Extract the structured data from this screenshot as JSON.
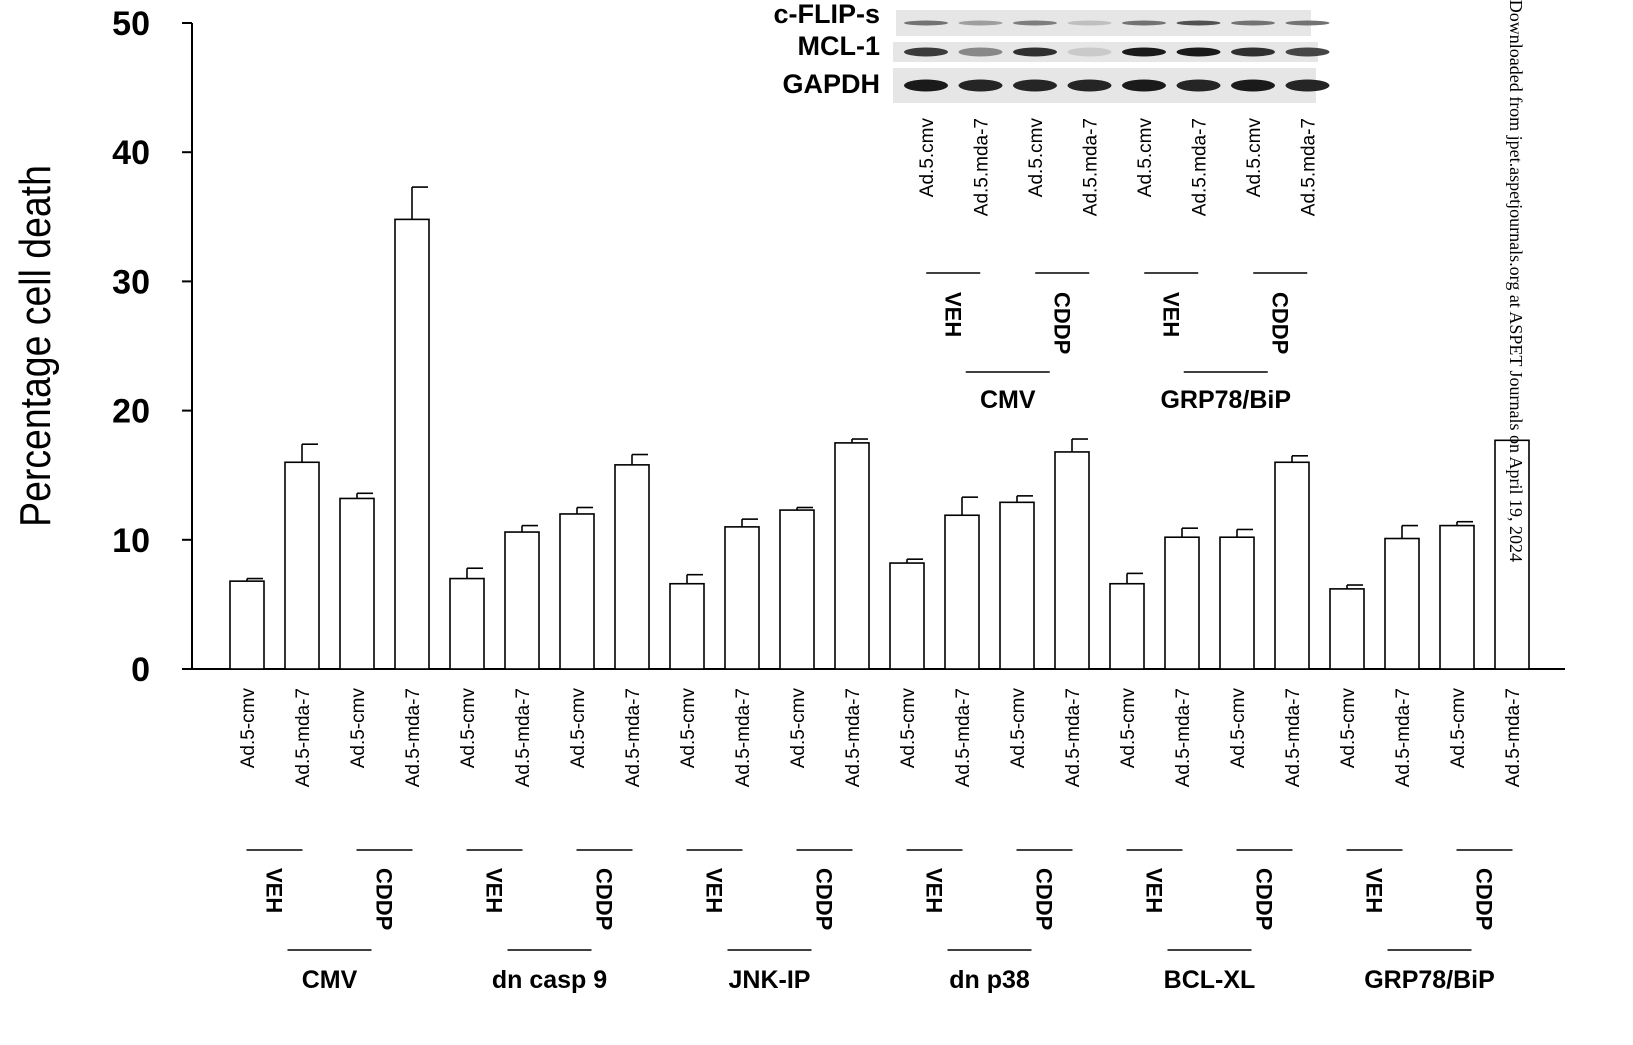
{
  "chart_data": {
    "type": "bar",
    "ylabel": "Percentage cell death",
    "ylim": [
      0,
      50
    ],
    "yticks": [
      0,
      10,
      20,
      30,
      40,
      50
    ],
    "grid": false,
    "groups": [
      "CMV",
      "dn casp 9",
      "JNK-IP",
      "dn p38",
      "BCL-XL",
      "GRP78/BiP"
    ],
    "subgroups": [
      "VEH",
      "CDDP"
    ],
    "categories": [
      "Ad.5-cmv",
      "Ad.5-mda-7",
      "Ad.5-cmv",
      "Ad.5-mda-7",
      "Ad.5-cmv",
      "Ad.5-mda-7",
      "Ad.5-cmv",
      "Ad.5-mda-7",
      "Ad.5-cmv",
      "Ad.5-mda-7",
      "Ad.5-cmv",
      "Ad.5-mda-7",
      "Ad.5-cmv",
      "Ad.5-mda-7",
      "Ad.5-cmv",
      "Ad.5-mda-7",
      "Ad.5-cmv",
      "Ad.5-mda-7",
      "Ad.5-cmv",
      "Ad.5-mda-7",
      "Ad.5-cmv",
      "Ad.5-mda-7",
      "Ad.5-cmv",
      "Ad.5-mda-7"
    ],
    "values": [
      6.8,
      16.0,
      13.2,
      34.8,
      7.0,
      10.6,
      12.0,
      15.8,
      6.6,
      11.0,
      12.3,
      17.5,
      8.2,
      11.9,
      12.9,
      16.8,
      6.6,
      10.2,
      10.2,
      16.0,
      6.2,
      10.1,
      11.1,
      17.7
    ],
    "errors": [
      0.2,
      1.4,
      0.4,
      2.5,
      0.8,
      0.5,
      0.5,
      0.8,
      0.7,
      0.6,
      0.2,
      0.3,
      0.3,
      1.4,
      0.5,
      1.0,
      0.8,
      0.7,
      0.6,
      0.5,
      0.3,
      1.0,
      0.3,
      0.0
    ]
  },
  "inset": {
    "blot_labels": [
      "c-FLIP-s",
      "MCL-1",
      "GAPDH"
    ],
    "lanes": [
      "Ad.5.cmv",
      "Ad.5.mda-7",
      "Ad.5.cmv",
      "Ad.5.mda-7",
      "Ad.5.cmv",
      "Ad.5.mda-7",
      "Ad.5.cmv",
      "Ad.5.mda-7"
    ],
    "subgroups": [
      "VEH",
      "CDDP",
      "VEH",
      "CDDP"
    ],
    "groups": [
      "CMV",
      "GRP78/BiP"
    ],
    "band_intensity": {
      "c-FLIP-s": [
        0.55,
        0.35,
        0.5,
        0.2,
        0.55,
        0.7,
        0.55,
        0.55
      ],
      "MCL-1": [
        0.8,
        0.45,
        0.85,
        0.15,
        0.95,
        0.95,
        0.85,
        0.75
      ],
      "GAPDH": [
        0.95,
        0.9,
        0.9,
        0.9,
        0.95,
        0.9,
        0.95,
        0.9
      ]
    }
  },
  "watermark": "Downloaded from jpet.aspetjournals.org at ASPET Journals on April 19, 2024"
}
